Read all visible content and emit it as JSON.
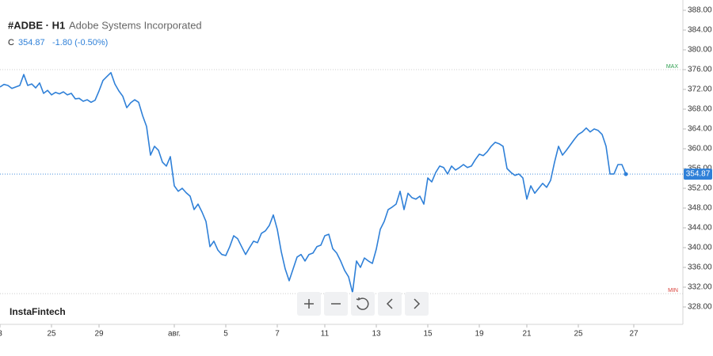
{
  "chart_data": {
    "type": "line",
    "title": "#ADBE · H1",
    "subtitle": "Adobe Systems Incorporated",
    "header": {
      "c_label": "C",
      "close": "354.87",
      "change": "-1.80 (-0.50%)"
    },
    "brand": "InstaFintech",
    "color": "#2f80d8",
    "ylim": [
      324.48,
      390.08
    ],
    "yticks": [
      {
        "value": 328,
        "label": "328.00"
      },
      {
        "value": 332,
        "label": "332.00"
      },
      {
        "value": 336,
        "label": "336.00"
      },
      {
        "value": 340,
        "label": "340.00"
      },
      {
        "value": 344,
        "label": "344.00"
      },
      {
        "value": 348,
        "label": "348.00"
      },
      {
        "value": 352,
        "label": "352.00"
      },
      {
        "value": 356,
        "label": "356.00"
      },
      {
        "value": 360,
        "label": "360.00"
      },
      {
        "value": 364,
        "label": "364.00"
      },
      {
        "value": 368,
        "label": "368.00"
      },
      {
        "value": 372,
        "label": "372.00"
      },
      {
        "value": 376,
        "label": "376.00"
      },
      {
        "value": 380,
        "label": "380.00"
      },
      {
        "value": 384,
        "label": "384.00"
      },
      {
        "value": 388,
        "label": "388.00"
      }
    ],
    "xlim": [
      0,
      172.4
    ],
    "xticks": [
      {
        "value": 0,
        "label": "3"
      },
      {
        "value": 13,
        "label": "25"
      },
      {
        "value": 25,
        "label": "29"
      },
      {
        "value": 44,
        "label": "авг."
      },
      {
        "value": 57,
        "label": "5"
      },
      {
        "value": 70,
        "label": "7"
      },
      {
        "value": 82,
        "label": "11"
      },
      {
        "value": 95,
        "label": "13"
      },
      {
        "value": 108,
        "label": "15"
      },
      {
        "value": 121,
        "label": "19"
      },
      {
        "value": 133,
        "label": "21"
      },
      {
        "value": 146,
        "label": "25"
      },
      {
        "value": 160,
        "label": "27"
      }
    ],
    "max": {
      "label": "MAX",
      "value": 376.0
    },
    "min": {
      "label": "MIN",
      "value": 330.7
    },
    "values": [
      372.5,
      373.0,
      372.8,
      372.2,
      372.5,
      372.8,
      375.0,
      372.8,
      373.1,
      372.3,
      373.3,
      371.2,
      371.8,
      370.9,
      371.4,
      371.1,
      371.5,
      370.9,
      371.2,
      370.1,
      370.2,
      369.6,
      369.9,
      369.4,
      369.8,
      371.7,
      373.8,
      374.6,
      375.4,
      373.1,
      371.7,
      370.6,
      368.3,
      369.3,
      369.9,
      369.4,
      366.7,
      364.5,
      358.7,
      360.5,
      359.7,
      357.3,
      356.5,
      358.4,
      352.5,
      351.4,
      352.0,
      351.1,
      350.4,
      347.7,
      348.8,
      347.2,
      345.3,
      340.2,
      341.3,
      339.5,
      338.6,
      338.4,
      340.2,
      342.4,
      341.8,
      340.2,
      338.6,
      340.0,
      341.3,
      341.0,
      342.9,
      343.4,
      344.5,
      346.6,
      343.7,
      339.2,
      335.7,
      333.3,
      335.7,
      338.1,
      338.6,
      337.3,
      338.6,
      338.9,
      340.2,
      340.5,
      342.4,
      342.7,
      339.8,
      338.9,
      337.3,
      335.4,
      334.1,
      330.9,
      337.3,
      336.0,
      337.9,
      337.3,
      336.8,
      339.7,
      343.7,
      345.3,
      347.7,
      348.2,
      348.8,
      351.4,
      347.7,
      351.0,
      350.1,
      349.8,
      350.4,
      348.8,
      354.1,
      353.3,
      355.2,
      356.5,
      356.2,
      354.9,
      356.5,
      355.7,
      356.2,
      356.8,
      356.2,
      356.5,
      357.8,
      358.9,
      358.6,
      359.4,
      360.5,
      361.3,
      361.0,
      360.5,
      356.0,
      355.2,
      354.6,
      354.9,
      354.1,
      349.8,
      352.5,
      351.0,
      352.0,
      353.0,
      352.2,
      353.6,
      357.3,
      360.5,
      358.7,
      359.7,
      360.8,
      361.9,
      362.9,
      363.4,
      364.2,
      363.4,
      364.0,
      363.7,
      362.9,
      360.5,
      354.9,
      354.9,
      356.8,
      356.8,
      354.87
    ]
  }
}
